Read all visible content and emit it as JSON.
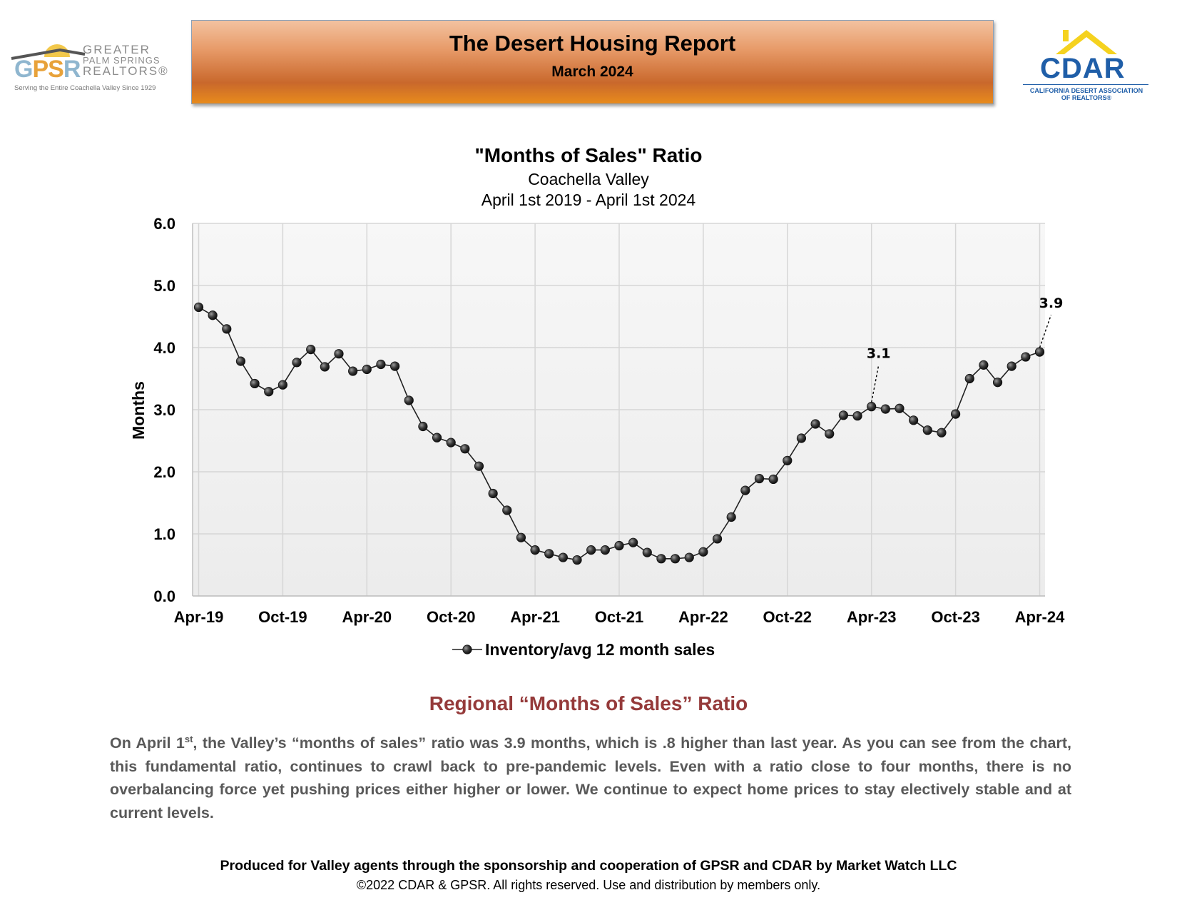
{
  "header": {
    "title": "The Desert Housing Report",
    "subtitle": "March 2024"
  },
  "gpsr_logo": {
    "letters_g": "G",
    "letters_ps": "PS",
    "letters_r": "R",
    "name_line1": "GREATER",
    "name_line2": "PALM SPRINGS",
    "name_line3": "REALTORS®",
    "tagline": "Serving the Entire Coachella Valley Since 1929"
  },
  "cdar_logo": {
    "text": "CDAR",
    "sub_line1": "CALIFORNIA DESERT ASSOCIATION",
    "sub_line2": "OF REALTORS®"
  },
  "chart_data": {
    "type": "line",
    "title": "\"Months of Sales\" Ratio",
    "subtitle1": "Coachella Valley",
    "subtitle2": "April 1st 2019 - April 1st 2024",
    "xlabel": "",
    "ylabel": "Months",
    "ylim": [
      0,
      6
    ],
    "yticks": [
      "0.0",
      "1.0",
      "2.0",
      "3.0",
      "4.0",
      "5.0",
      "6.0"
    ],
    "xticks": [
      "Apr-19",
      "Oct-19",
      "Apr-20",
      "Oct-20",
      "Apr-21",
      "Oct-21",
      "Apr-22",
      "Oct-22",
      "Apr-23",
      "Oct-23",
      "Apr-24"
    ],
    "grid": true,
    "legend_position": "bottom",
    "series": [
      {
        "name": "Inventory/avg 12 month sales",
        "color": "#333333",
        "values": [
          4.65,
          4.52,
          4.3,
          3.78,
          3.42,
          3.29,
          3.4,
          3.76,
          3.97,
          3.69,
          3.9,
          3.62,
          3.65,
          3.73,
          3.7,
          3.15,
          2.73,
          2.55,
          2.47,
          2.37,
          2.09,
          1.65,
          1.38,
          0.94,
          0.74,
          0.68,
          0.62,
          0.58,
          0.74,
          0.74,
          0.81,
          0.86,
          0.7,
          0.6,
          0.6,
          0.62,
          0.71,
          0.92,
          1.27,
          1.7,
          1.89,
          1.88,
          2.18,
          2.54,
          2.77,
          2.61,
          2.91,
          2.9,
          3.05,
          3.01,
          3.02,
          2.83,
          2.67,
          2.63,
          2.93,
          3.5,
          3.72,
          3.44,
          3.7,
          3.85,
          3.93
        ]
      }
    ],
    "annotations": [
      {
        "index": 48,
        "label": "3.1"
      },
      {
        "index": 60,
        "label": "3.9"
      }
    ]
  },
  "section": {
    "title": "Regional “Months of Sales” Ratio",
    "para_start": "On April 1",
    "para_sup": "st",
    "para_rest": ", the Valley’s “months of sales” ratio was 3.9 months, which is .8 higher than last year. As you can see from the chart, this fundamental ratio, continues to crawl back to pre-pandemic levels. Even with a ratio close to four months, there is no overbalancing force yet pushing prices either higher or lower. We continue to expect home prices to stay electively stable and at current levels."
  },
  "footer": {
    "line1": "Produced for Valley agents through the sponsorship and cooperation of GPSR and CDAR by Market Watch LLC",
    "line2": "©2022 CDAR & GPSR.  All rights reserved.  Use and distribution by members only."
  }
}
